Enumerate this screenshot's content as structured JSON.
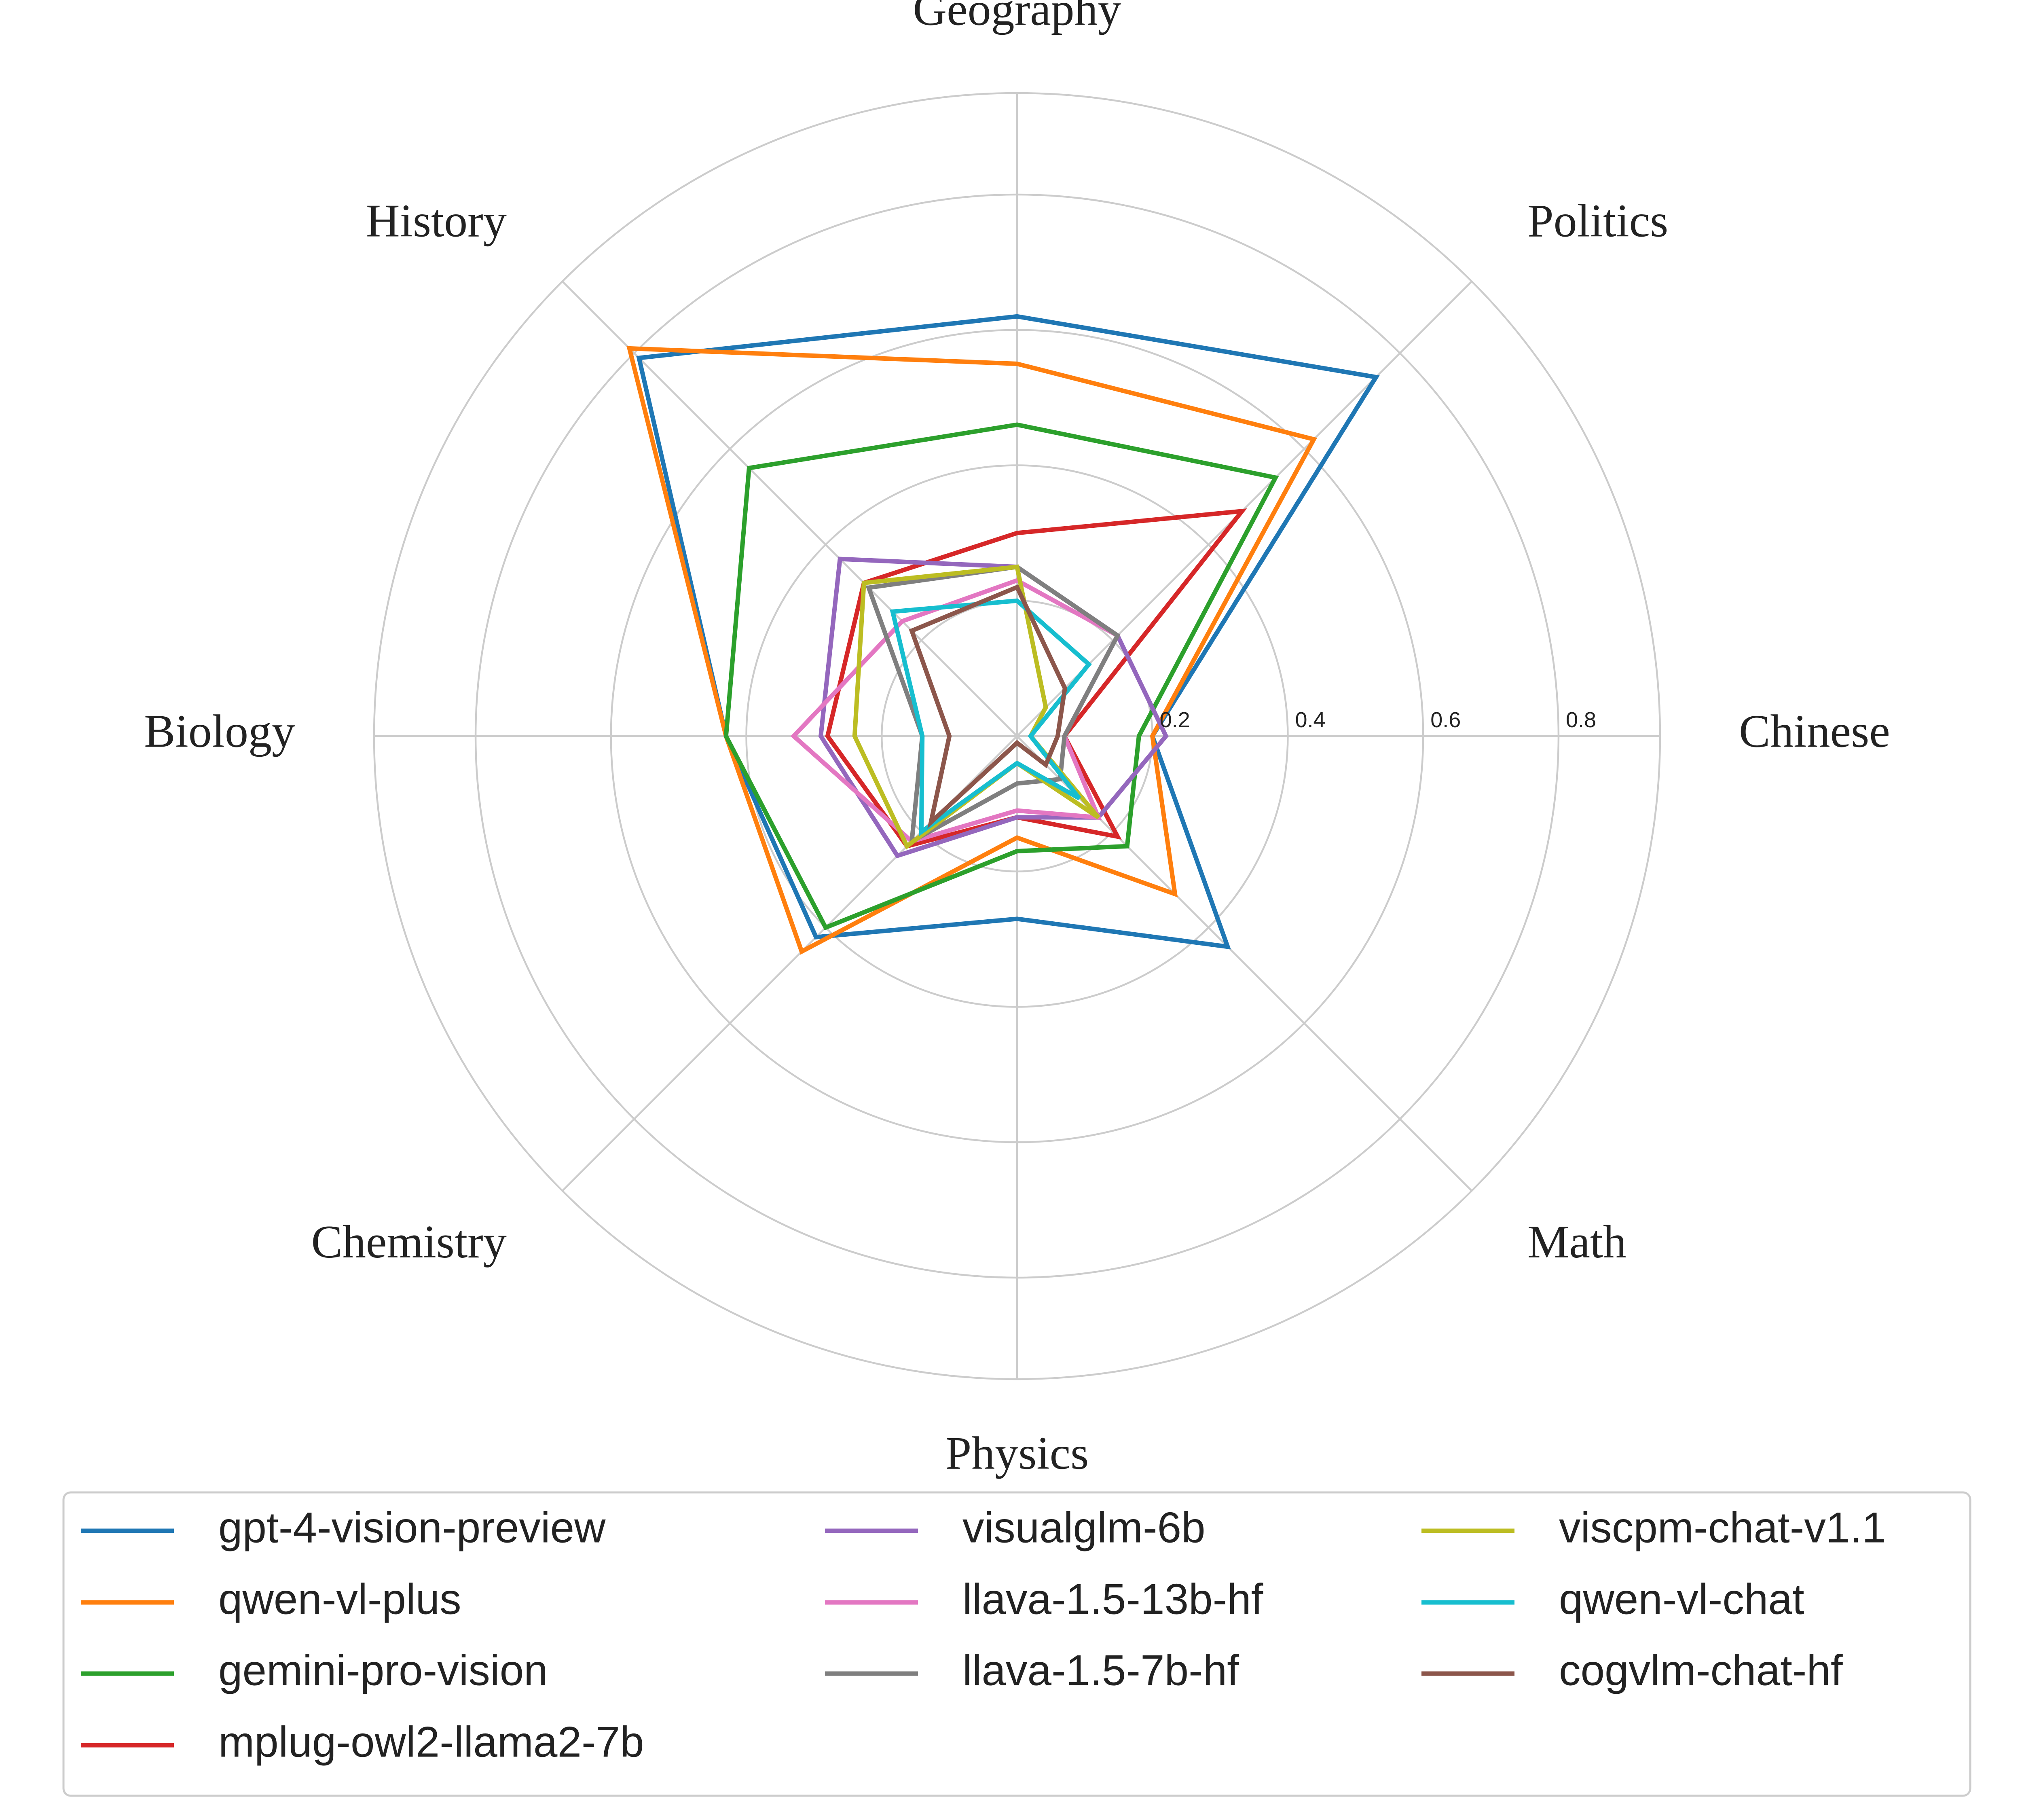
{
  "chart_data": {
    "type": "radar",
    "axes": [
      "Chinese",
      "Politics",
      "Geography",
      "History",
      "Biology",
      "Chemistry",
      "Physics",
      "Math"
    ],
    "rlim": [
      0,
      0.95
    ],
    "ticks": [
      0.2,
      0.4,
      0.6,
      0.8
    ],
    "tick_labels": [
      "0.2",
      "0.4",
      "0.6",
      "0.8"
    ],
    "grid": true,
    "legend_position": "bottom",
    "legend_columns": 3,
    "series": [
      {
        "name": "gpt-4-vision-preview",
        "color": "#1f77b4",
        "values": [
          0.2,
          0.75,
          0.62,
          0.79,
          0.43,
          0.42,
          0.27,
          0.44
        ]
      },
      {
        "name": "qwen-vl-plus",
        "color": "#ff7f0e",
        "values": [
          0.2,
          0.62,
          0.55,
          0.81,
          0.43,
          0.45,
          0.15,
          0.33
        ]
      },
      {
        "name": "gemini-pro-vision",
        "color": "#2ca02c",
        "values": [
          0.18,
          0.54,
          0.46,
          0.56,
          0.43,
          0.4,
          0.17,
          0.23
        ]
      },
      {
        "name": "mplug-owl2-llama2-7b",
        "color": "#d62728",
        "values": [
          0.07,
          0.47,
          0.3,
          0.32,
          0.28,
          0.23,
          0.12,
          0.21
        ]
      },
      {
        "name": "visualglm-6b",
        "color": "#9467bd",
        "values": [
          0.22,
          0.21,
          0.25,
          0.37,
          0.29,
          0.25,
          0.12,
          0.17
        ]
      },
      {
        "name": "llava-1.5-13b-hf",
        "color": "#e377c2",
        "values": [
          0.07,
          0.21,
          0.23,
          0.24,
          0.33,
          0.22,
          0.11,
          0.17
        ]
      },
      {
        "name": "llava-1.5-7b-hf",
        "color": "#7f7f7f",
        "values": [
          0.07,
          0.21,
          0.25,
          0.31,
          0.14,
          0.22,
          0.07,
          0.09
        ]
      },
      {
        "name": "viscpm-chat-v1.1",
        "color": "#bcbd22",
        "values": [
          0.02,
          0.06,
          0.25,
          0.32,
          0.24,
          0.23,
          0.04,
          0.17
        ]
      },
      {
        "name": "qwen-vl-chat",
        "color": "#17becf",
        "values": [
          0.02,
          0.15,
          0.2,
          0.26,
          0.14,
          0.2,
          0.04,
          0.13
        ]
      },
      {
        "name": "cogvlm-chat-hf",
        "color": "#8c564b",
        "values": [
          0.06,
          0.1,
          0.22,
          0.22,
          0.1,
          0.18,
          0.01,
          0.06
        ]
      }
    ]
  }
}
